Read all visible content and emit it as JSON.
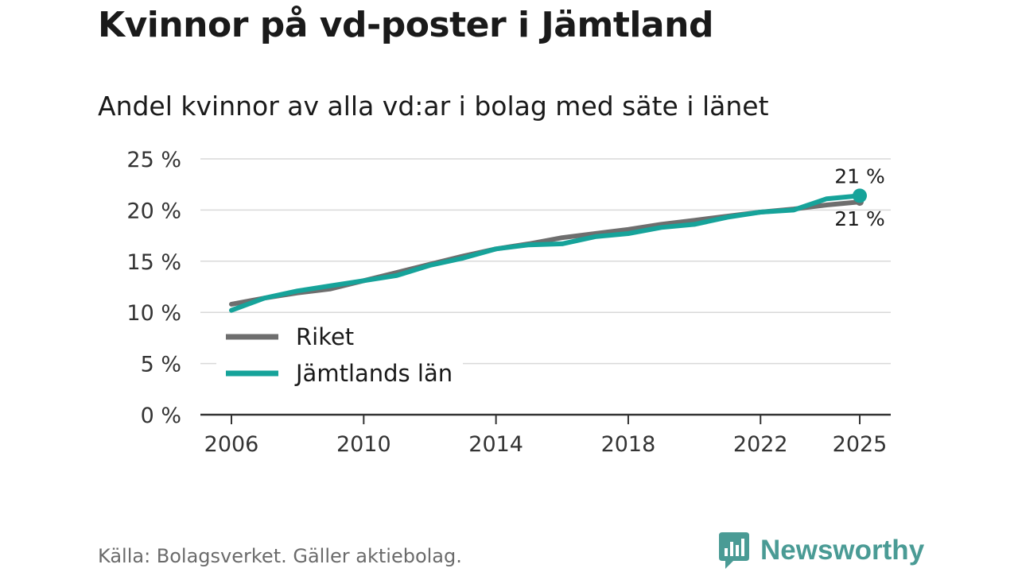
{
  "chart_data": {
    "type": "line",
    "title": "Kvinnor på vd-poster i Jämtland",
    "subtitle": "Andel kvinnor av alla vd:ar i bolag med säte i länet",
    "xlabel": "",
    "ylabel": "",
    "ylim": [
      0,
      25
    ],
    "xlim": [
      2006,
      2025
    ],
    "y_ticks": [
      0,
      5,
      10,
      15,
      20,
      25
    ],
    "y_tick_labels": [
      "0 %",
      "5 %",
      "10 %",
      "15 %",
      "20 %",
      "25 %"
    ],
    "x_ticks": [
      2006,
      2010,
      2014,
      2018,
      2022,
      2025
    ],
    "x_tick_labels": [
      "2006",
      "2010",
      "2014",
      "2018",
      "2022",
      "2025"
    ],
    "grid": true,
    "legend_position": "bottom-left",
    "series": [
      {
        "name": "Riket",
        "color": "#6e6e6e",
        "x": [
          2006,
          2007,
          2008,
          2009,
          2010,
          2011,
          2012,
          2013,
          2014,
          2015,
          2016,
          2017,
          2018,
          2019,
          2020,
          2021,
          2022,
          2023,
          2024,
          2025
        ],
        "values": [
          10.8,
          11.4,
          11.9,
          12.3,
          13.1,
          13.9,
          14.7,
          15.5,
          16.2,
          16.7,
          17.3,
          17.7,
          18.1,
          18.6,
          19.0,
          19.4,
          19.8,
          20.1,
          20.5,
          20.8
        ],
        "end_label": "21 %"
      },
      {
        "name": "Jämtlands län",
        "color": "#16a39a",
        "x": [
          2006,
          2007,
          2008,
          2009,
          2010,
          2011,
          2012,
          2013,
          2014,
          2015,
          2016,
          2017,
          2018,
          2019,
          2020,
          2021,
          2022,
          2023,
          2024,
          2025
        ],
        "values": [
          10.2,
          11.4,
          12.1,
          12.6,
          13.1,
          13.6,
          14.6,
          15.3,
          16.2,
          16.6,
          16.7,
          17.4,
          17.7,
          18.3,
          18.6,
          19.3,
          19.8,
          20.0,
          21.1,
          21.4
        ],
        "end_label": "21 %"
      }
    ]
  },
  "source": "Källa: Bolagsverket. Gäller aktiebolag.",
  "brand": {
    "name": "Newsworthy",
    "color": "#4a9b95"
  }
}
